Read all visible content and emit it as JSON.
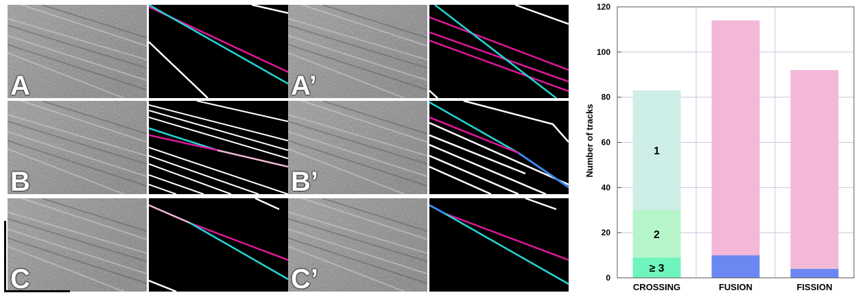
{
  "panels": [
    {
      "label": "A"
    },
    {
      "label": "A’"
    },
    {
      "label": "B"
    },
    {
      "label": "B’"
    },
    {
      "label": "C"
    },
    {
      "label": "C’"
    }
  ],
  "colors": {
    "kymo_bg": "#000000",
    "track": "#ffffff",
    "cyan": "#24d6d6",
    "magenta": "#e0189a",
    "pink": "#f2b8d6",
    "blue": "#3f86ee",
    "seg_1": "#cdeee6",
    "seg_2": "#b6f5ca",
    "seg_3": "#6ef5bd",
    "fusion_pink": "#f3b7d8",
    "fusion_blue": "#6b88f2",
    "grid": "#c8c8dc"
  },
  "chart_data": {
    "type": "bar",
    "ylabel": "Number of tracks",
    "ylim": [
      0,
      120
    ],
    "yticks": [
      0,
      20,
      40,
      60,
      80,
      100,
      120
    ],
    "grid": true,
    "categories": [
      "CROSSING",
      "FUSION",
      "FISSION"
    ],
    "bars": [
      {
        "category": "CROSSING",
        "segments": [
          {
            "label": "≥ 3",
            "value": 9
          },
          {
            "label": "2",
            "value": 21
          },
          {
            "label": "1",
            "value": 53
          }
        ]
      },
      {
        "category": "FUSION",
        "segments": [
          {
            "label": "",
            "value": 10
          },
          {
            "label": "",
            "value": 104
          }
        ]
      },
      {
        "category": "FISSION",
        "segments": [
          {
            "label": "",
            "value": 4
          },
          {
            "label": "",
            "value": 88
          }
        ]
      }
    ]
  }
}
